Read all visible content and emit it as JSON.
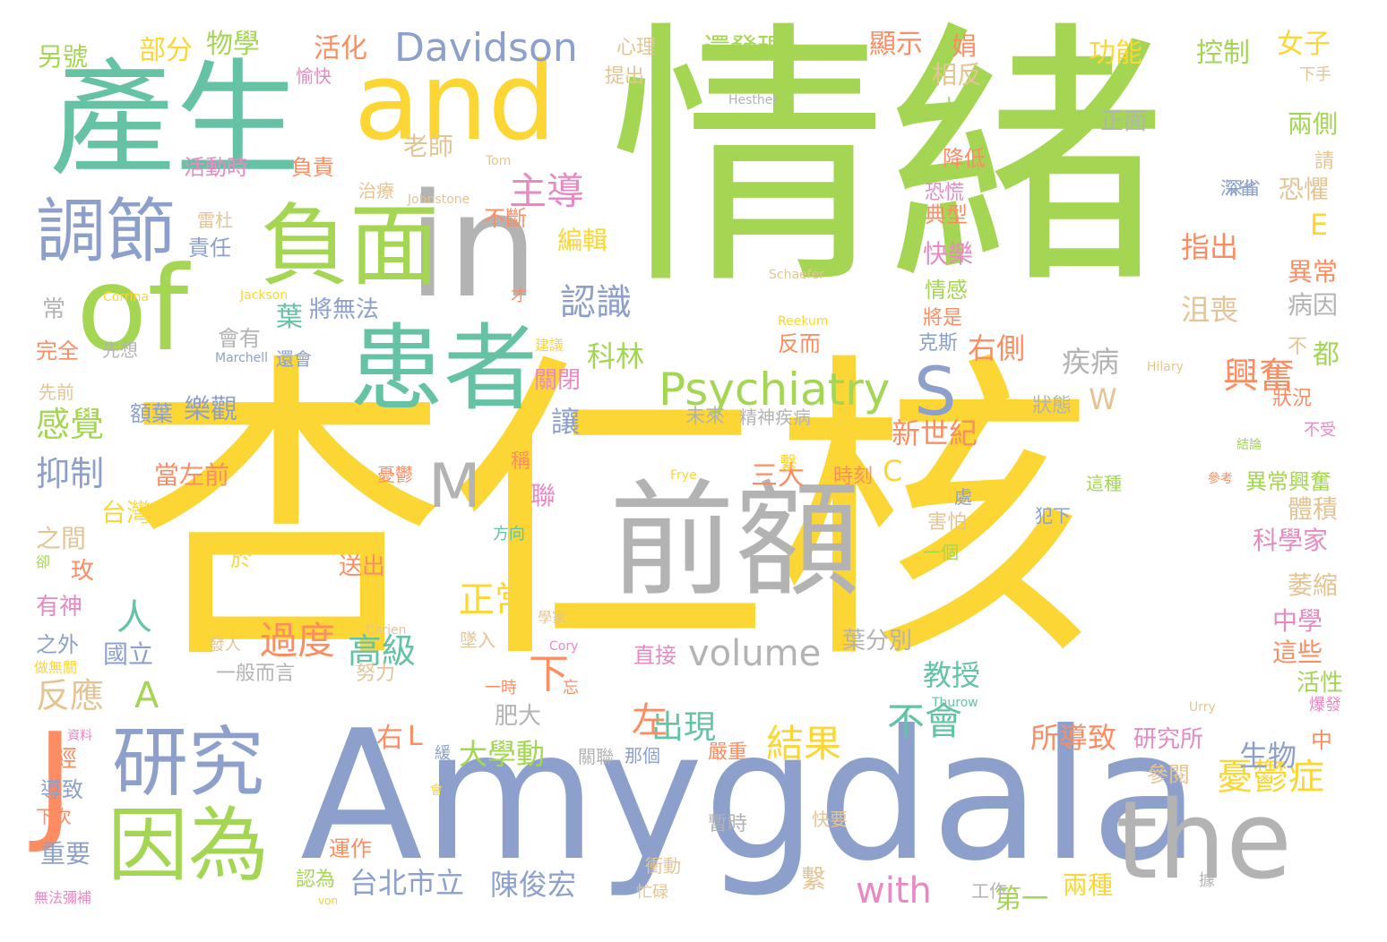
{
  "colors": {
    "yellow": "#fcd634",
    "green": "#a4d653",
    "teal": "#66c2a5",
    "grey": "#b3b3b3",
    "blue": "#8da0cb",
    "orange": "#fc8d62",
    "pink": "#e78ac3",
    "tan": "#e5c494"
  },
  "words": [
    "情緒",
    "杏仁核",
    "Amygdala",
    "產生",
    "in",
    "of",
    "and",
    "前額",
    "the",
    "患者",
    "負面",
    "研究",
    "因為",
    "調節",
    "J",
    "Psychiatry",
    "S",
    "M",
    "Davidson",
    "volume",
    "興奮",
    "憂鬱症",
    "結果",
    "主導",
    "認識",
    "with",
    "正常",
    "過度",
    "高級",
    "人",
    "下",
    "不會",
    "出現",
    "左",
    "感覺",
    "抑制",
    "反應",
    "A",
    "大學動",
    "台北市立",
    "陳俊宏",
    "重要",
    "教授",
    "新世紀",
    "科林",
    "讓",
    "指出",
    "沮喪",
    "疾病",
    "右側",
    "研究所",
    "生物",
    "所導致",
    "參閱",
    "中學",
    "這些",
    "萎縮",
    "體積",
    "科學家",
    "異常",
    "病因",
    "恐懼",
    "兩側",
    "功能",
    "女子",
    "控制",
    "還發現",
    "顯示",
    "活化",
    "物學",
    "部分",
    "另號",
    "娟",
    "相反",
    "上",
    "正面",
    "降低",
    "典型",
    "恐慌",
    "快樂",
    "情感",
    "將是",
    "克斯",
    "反而",
    "將無法",
    "會有",
    "葉",
    "樂觀",
    "額葉",
    "責任",
    "編輯",
    "不斷",
    "關閉",
    "稱",
    "聯",
    "三大",
    "時刻",
    "C",
    "W",
    "E",
    "台灣",
    "之間",
    "玫",
    "有神",
    "之外",
    "國立",
    "經",
    "導致",
    "下次",
    "運作",
    "認為",
    "第一",
    "兩種",
    "工作",
    "繫",
    "暫時",
    "衝動",
    "忙碌",
    "快要",
    "一般而言",
    "努力",
    "墜入",
    "葉分別",
    "直接",
    "忘",
    "一時",
    "嚴重",
    "那個",
    "關聯",
    "緩",
    "肥大",
    "右",
    "L",
    "送出",
    "方向",
    "於",
    "當左前",
    "憂鬱",
    "處",
    "害怕",
    "一個",
    "犯下",
    "這種",
    "異常興奮",
    "參考",
    "結論",
    "不受",
    "狀況",
    "都",
    "不",
    "活性",
    "爆發",
    "中",
    "精神疾病",
    "未來",
    "狀態",
    "繫",
    "建議",
    "才",
    "常",
    "完全",
    "先前",
    "先想",
    "還會",
    "Marchell",
    "Jackson",
    "Corrina",
    "Schaefer",
    "Reekum",
    "Frye",
    "Carien",
    "Cory",
    "Thurow",
    "Urry",
    "Hilary",
    "Tom",
    "Johnstone",
    "Hesther",
    "心理",
    "提出",
    "愉快",
    "雷杜",
    "治療",
    "負責",
    "活動時",
    "老師",
    "深省",
    "請",
    "下手",
    "學家",
    "發人",
    "深省",
    "卻",
    "做無關",
    "資料",
    "無法彌補",
    "von",
    "據",
    "會",
    "von"
  ]
}
